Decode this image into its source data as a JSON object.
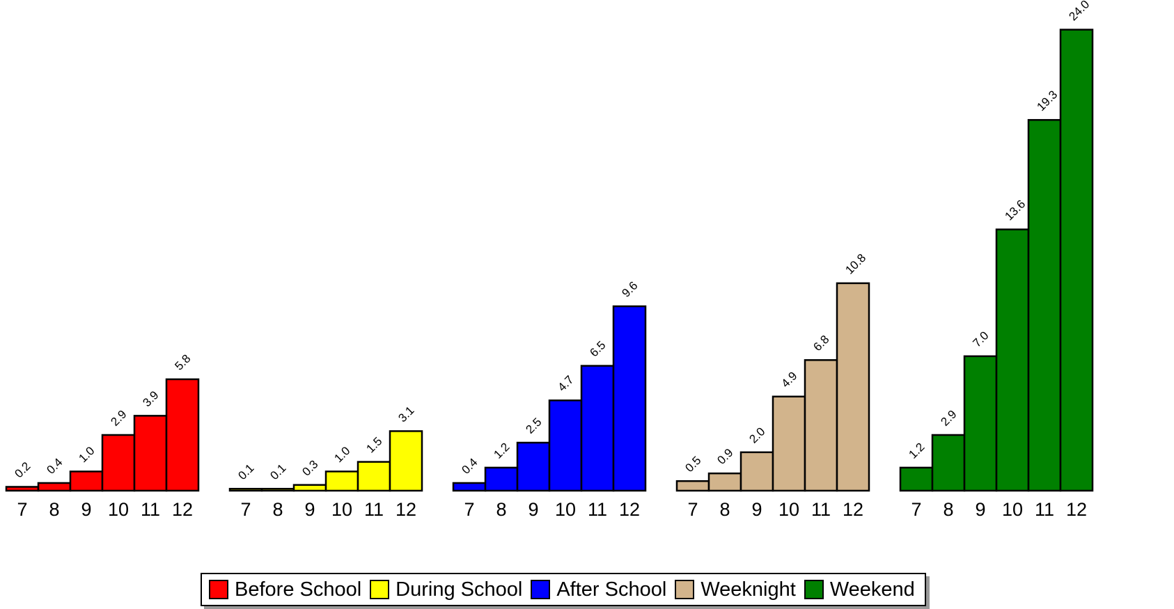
{
  "chart_data": {
    "type": "bar",
    "categories": [
      "7",
      "8",
      "9",
      "10",
      "11",
      "12"
    ],
    "series": [
      {
        "name": "Before School",
        "color": "#ff0000",
        "values": [
          0.2,
          0.4,
          1.0,
          2.9,
          3.9,
          5.8
        ],
        "labels": [
          "0.2",
          "0.4",
          "1.0",
          "2.9",
          "3.9",
          "5.8"
        ]
      },
      {
        "name": "During School",
        "color": "#ffff00",
        "values": [
          0.1,
          0.1,
          0.3,
          1.0,
          1.5,
          3.1
        ],
        "labels": [
          "0.1",
          "0.1",
          "0.3",
          "1.0",
          "1.5",
          "3.1"
        ]
      },
      {
        "name": "After School",
        "color": "#0000ff",
        "values": [
          0.4,
          1.2,
          2.5,
          4.7,
          6.5,
          9.6
        ],
        "labels": [
          "0.4",
          "1.2",
          "2.5",
          "4.7",
          "6.5",
          "9.6"
        ]
      },
      {
        "name": "Weeknight",
        "color": "#d2b48c",
        "values": [
          0.5,
          0.9,
          2.0,
          4.9,
          6.8,
          10.8
        ],
        "labels": [
          "0.5",
          "0.9",
          "2.0",
          "4.9",
          "6.8",
          "10.8"
        ]
      },
      {
        "name": "Weekend",
        "color": "#008000",
        "values": [
          1.2,
          2.9,
          7.0,
          13.6,
          19.3,
          24.0
        ],
        "labels": [
          "1.2",
          "2.9",
          "7.0",
          "13.6",
          "19.3",
          "24.0"
        ]
      }
    ],
    "ylim": [
      0,
      24.0
    ],
    "grid": false,
    "legend": "bottom"
  }
}
